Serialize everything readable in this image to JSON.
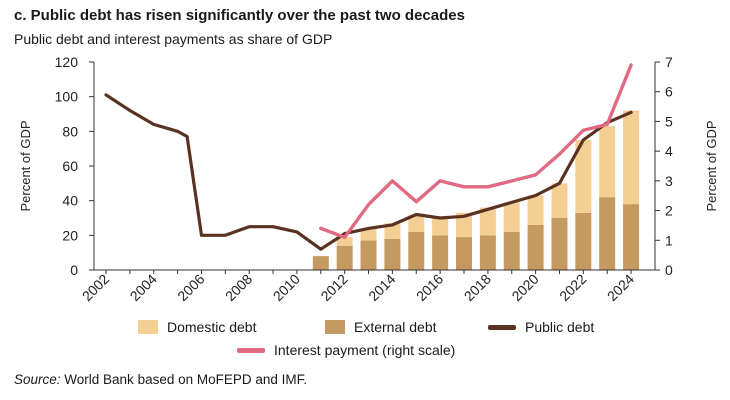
{
  "header": {
    "title": "c. Public debt has risen significantly over the past two decades",
    "subtitle": "Public debt and interest payments as share of GDP"
  },
  "source": {
    "label": "Source:",
    "text": " World Bank based on MoFEPD and IMF."
  },
  "colors": {
    "domestic": "#f3cf94",
    "external": "#c49a61",
    "public": "#5a3221",
    "interest": "#e06a82",
    "axis": "#333333"
  },
  "chart_data": {
    "type": "bar",
    "title": "c. Public debt has risen significantly over the past two decades",
    "subtitle": "Public debt and interest payments as share of GDP",
    "ylabel": "Percent of GDP",
    "y2label": "Percent of GDP",
    "ylim": [
      0,
      120
    ],
    "y2lim": [
      0,
      7
    ],
    "yticks": [
      "0",
      "20",
      "40",
      "60",
      "80",
      "100",
      "120"
    ],
    "y2ticks": [
      "0",
      "1",
      "2",
      "3",
      "4",
      "5",
      "6",
      "7"
    ],
    "xticks": [
      "2002",
      "2004",
      "2006",
      "2008",
      "2010",
      "2012",
      "2014",
      "2016",
      "2018",
      "2020",
      "2022",
      "2024"
    ],
    "xlim": [
      2002,
      2024.5
    ],
    "grid": false,
    "legend_placement": "bottom",
    "bars": {
      "years": [
        2011,
        2012,
        2013,
        2014,
        2015,
        2016,
        2017,
        2018,
        2019,
        2020,
        2021,
        2022,
        2023,
        2024
      ],
      "external": [
        8,
        14,
        17,
        18,
        22,
        20,
        19,
        20,
        22,
        26,
        30,
        33,
        42,
        38
      ],
      "domestic": [
        0,
        5,
        7,
        9,
        10,
        11,
        14,
        16,
        17,
        17,
        20,
        42,
        41,
        54
      ]
    },
    "series": [
      {
        "name": "Public debt",
        "axis": "left",
        "points": [
          [
            2002,
            101
          ],
          [
            2003,
            92
          ],
          [
            2004,
            84
          ],
          [
            2005,
            80
          ],
          [
            2005.4,
            77
          ],
          [
            2006,
            20
          ],
          [
            2007,
            20
          ],
          [
            2008,
            25
          ],
          [
            2009,
            25
          ],
          [
            2010,
            22
          ],
          [
            2011,
            12
          ],
          [
            2012,
            21
          ],
          [
            2013,
            24
          ],
          [
            2014,
            26
          ],
          [
            2015,
            32
          ],
          [
            2016,
            30
          ],
          [
            2017,
            31
          ],
          [
            2018,
            35
          ],
          [
            2019,
            39
          ],
          [
            2020,
            43
          ],
          [
            2021,
            50
          ],
          [
            2022,
            75
          ],
          [
            2023,
            85
          ],
          [
            2024,
            91
          ]
        ]
      },
      {
        "name": "Interest payment (right scale)",
        "axis": "right",
        "points": [
          [
            2011,
            1.4
          ],
          [
            2012,
            1.1
          ],
          [
            2013,
            2.2
          ],
          [
            2014,
            3.0
          ],
          [
            2015,
            2.3
          ],
          [
            2016,
            3.0
          ],
          [
            2017,
            2.8
          ],
          [
            2018,
            2.8
          ],
          [
            2019,
            3.0
          ],
          [
            2020,
            3.2
          ],
          [
            2021,
            3.9
          ],
          [
            2022,
            4.7
          ],
          [
            2023,
            4.9
          ],
          [
            2024,
            6.9
          ]
        ]
      }
    ],
    "legend": {
      "domestic": "Domestic debt",
      "external": "External debt",
      "public": "Public debt",
      "interest": "Interest payment (right scale)"
    }
  }
}
